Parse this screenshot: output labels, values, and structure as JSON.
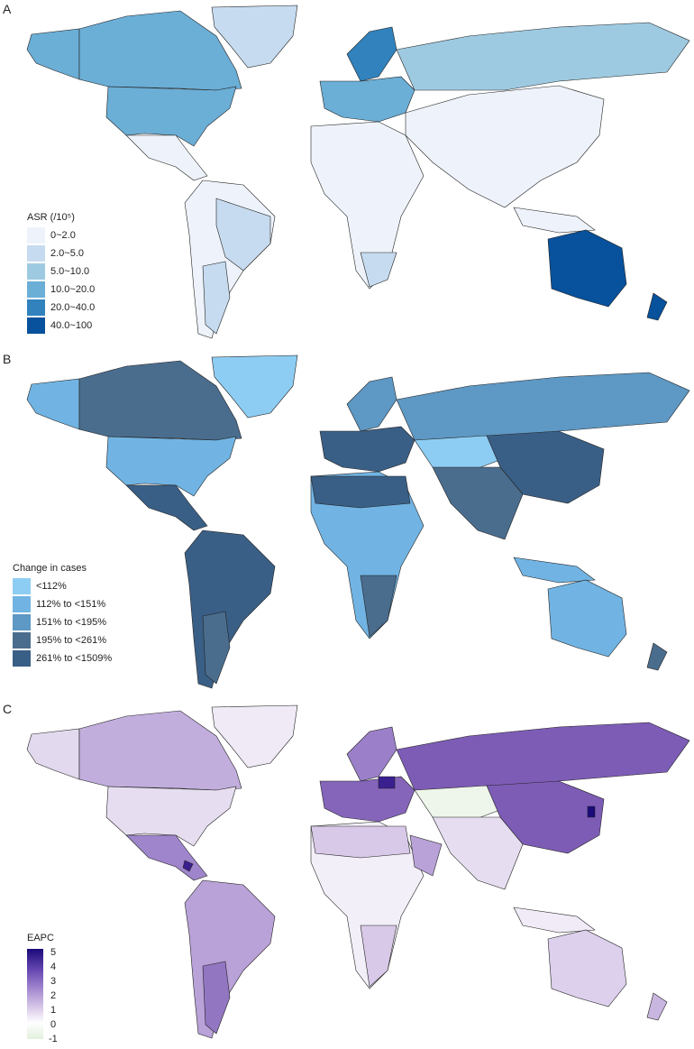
{
  "panels": {
    "a": {
      "letter": "A",
      "legend_title": "ASR (/10⁵)",
      "legend_items": [
        {
          "label": "0~2.0",
          "color": "#eef3fb"
        },
        {
          "label": "2.0~5.0",
          "color": "#c6dbef"
        },
        {
          "label": "5.0~10.0",
          "color": "#9ecae1"
        },
        {
          "label": "10.0~20.0",
          "color": "#6baed6"
        },
        {
          "label": "20.0~40.0",
          "color": "#3182bd"
        },
        {
          "label": "40.0~100",
          "color": "#08519c"
        }
      ]
    },
    "b": {
      "letter": "B",
      "legend_title": "Change in cases",
      "legend_items": [
        {
          "label": "<112%",
          "color": "#8ecdf3"
        },
        {
          "label": "112% to <151%",
          "color": "#71b4e3"
        },
        {
          "label": "151% to <195%",
          "color": "#5e98c4"
        },
        {
          "label": "195% to <261%",
          "color": "#4a6d8e"
        },
        {
          "label": "261% to <1509%",
          "color": "#3a5f86"
        }
      ]
    },
    "c": {
      "letter": "C",
      "legend_title": "EAPC",
      "ticks": [
        "5",
        "4",
        "3",
        "2",
        "1",
        "0",
        "-1"
      ],
      "gradient_colors": [
        "#1a0a7a",
        "#6b4cb5",
        "#a58ad0",
        "#d8c9e8",
        "#ffffff",
        "#e2f0dc"
      ]
    }
  },
  "colors": {
    "ocean": "#ffffff",
    "border": "#222222"
  }
}
